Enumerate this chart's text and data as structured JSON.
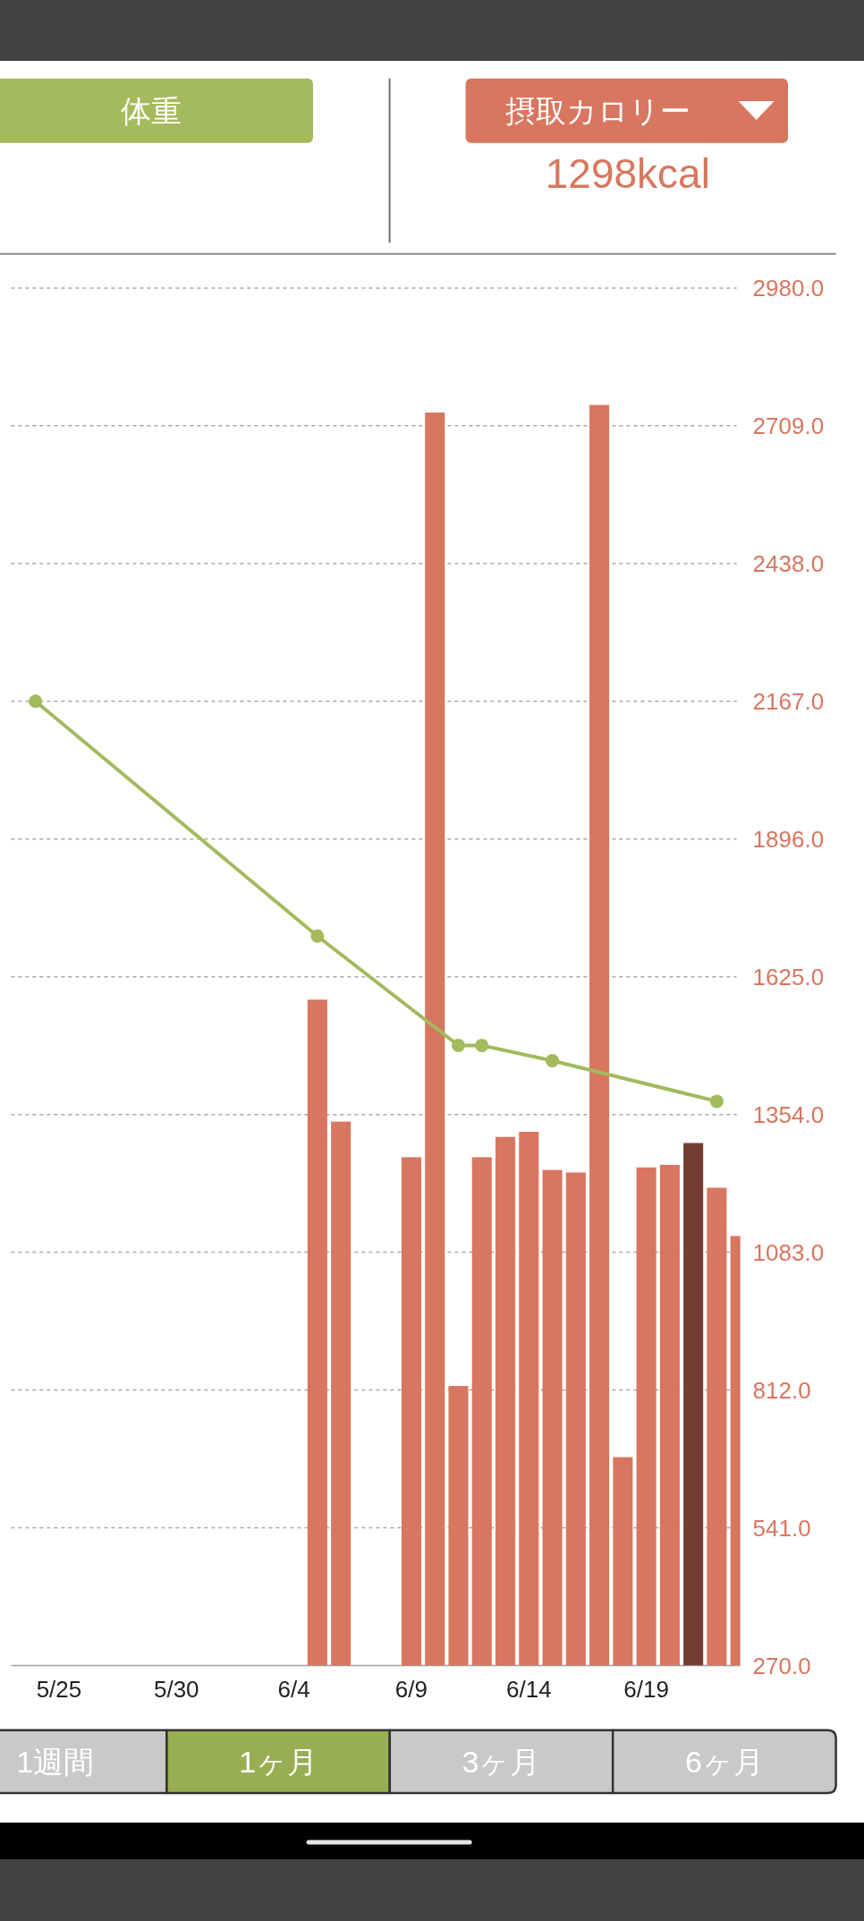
{
  "chart_data": {
    "type": "bar",
    "subtitle": "1298kcal",
    "series": [
      {
        "name": "体重",
        "type": "line",
        "color": "#a3ba5d",
        "x": [
          "--05-24",
          "--06-05",
          "--06-11",
          "--06-12",
          "--06-15",
          "--06-22"
        ],
        "values": [
          2167,
          1705,
          1490,
          1490,
          1460,
          1380
        ]
      },
      {
        "name": "摂取カロリー",
        "color": "#d8765f",
        "x": [
          "--06-05",
          "--06-06",
          "--06-09",
          "--06-10",
          "--06-11",
          "--06-12",
          "--06-13",
          "--06-14",
          "--06-15",
          "--06-16",
          "--06-17",
          "--06-18",
          "--06-19",
          "--06-20",
          "--06-21",
          "--06-22",
          "--06-23"
        ],
        "values": [
          1580,
          1340,
          1270,
          2735,
          820,
          1270,
          1310,
          1320,
          1245,
          1240,
          2750,
          680,
          1250,
          1255,
          1298,
          1210,
          1115
        ],
        "colors": [
          "#d8765f",
          "#d8765f",
          "#d8765f",
          "#d8765f",
          "#d8765f",
          "#d8765f",
          "#d8765f",
          "#d8765f",
          "#d8765f",
          "#d8765f",
          "#d8765f",
          "#d8765f",
          "#d8765f",
          "#d8765f",
          "#733e31",
          "#d8765f",
          "#d8765f"
        ]
      }
    ],
    "xlim": [
      "--05-23",
      "--06-23"
    ],
    "xticks": [
      {
        "value": "--05-25",
        "label": "5/25"
      },
      {
        "value": "--05-30",
        "label": "5/30"
      },
      {
        "value": "--06-04",
        "label": "6/4"
      },
      {
        "value": "--06-09",
        "label": "6/9"
      },
      {
        "value": "--06-14",
        "label": "6/14"
      },
      {
        "value": "--06-19",
        "label": "6/19"
      }
    ],
    "ylim": [
      270,
      2980
    ],
    "yticks": [
      {
        "value": 270,
        "label": "270.0"
      },
      {
        "value": 541,
        "label": "541.0"
      },
      {
        "value": 812,
        "label": "812.0"
      },
      {
        "value": 1083,
        "label": "1083.0"
      },
      {
        "value": 1354,
        "label": "1354.0"
      },
      {
        "value": 1625,
        "label": "1625.0"
      },
      {
        "value": 1896,
        "label": "1896.0"
      },
      {
        "value": 2167,
        "label": "2167.0"
      },
      {
        "value": 2438,
        "label": "2438.0"
      },
      {
        "value": 2709,
        "label": "2709.0"
      },
      {
        "value": 2980,
        "label": "2980.0"
      }
    ],
    "grid": "y",
    "legend": "top",
    "marker": "circle",
    "annotations": [
      "1週間",
      "1ヶ月",
      "3ヶ月",
      "6ヶ月"
    ]
  }
}
